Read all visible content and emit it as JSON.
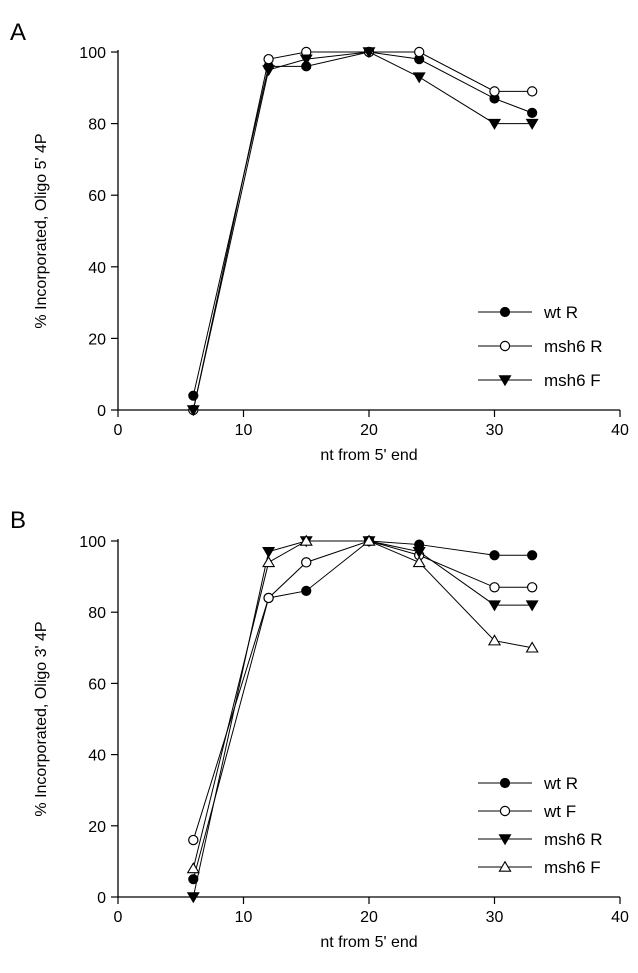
{
  "chart_data": [
    {
      "type": "line",
      "panel_label": "A",
      "xlabel": "nt from 5' end",
      "ylabel": "% Incorporated, Oligo 5' 4P",
      "xlim": [
        0,
        40
      ],
      "ylim": [
        0,
        100
      ],
      "xticks": [
        0,
        10,
        20,
        30,
        40
      ],
      "yticks": [
        0,
        20,
        40,
        60,
        80,
        100
      ],
      "grid": false,
      "legend_position": "bottom-right",
      "x": [
        6,
        12,
        15,
        20,
        24,
        30,
        33
      ],
      "series": [
        {
          "name": "wt R",
          "marker": "circle-filled",
          "values": [
            4,
            96,
            96,
            100,
            98,
            87,
            83
          ]
        },
        {
          "name": "msh6 R",
          "marker": "circle-open",
          "values": [
            0,
            98,
            100,
            100,
            100,
            89,
            89
          ]
        },
        {
          "name": "msh6 F",
          "marker": "triangle-down-filled",
          "values": [
            0,
            95,
            98,
            100,
            93,
            80,
            80
          ]
        }
      ]
    },
    {
      "type": "line",
      "panel_label": "B",
      "xlabel": "nt from 5' end",
      "ylabel": "% Incorporated, Oligo 3' 4P",
      "xlim": [
        0,
        40
      ],
      "ylim": [
        0,
        100
      ],
      "xticks": [
        0,
        10,
        20,
        30,
        40
      ],
      "yticks": [
        0,
        20,
        40,
        60,
        80,
        100
      ],
      "grid": false,
      "legend_position": "bottom-right",
      "x": [
        6,
        12,
        15,
        20,
        24,
        30,
        33
      ],
      "series": [
        {
          "name": "wt R",
          "marker": "circle-filled",
          "values": [
            5,
            84,
            86,
            100,
            99,
            96,
            96
          ]
        },
        {
          "name": "wt F",
          "marker": "circle-open",
          "values": [
            16,
            84,
            94,
            100,
            96,
            87,
            87
          ]
        },
        {
          "name": "msh6 R",
          "marker": "triangle-down-filled",
          "values": [
            0,
            97,
            100,
            100,
            97,
            82,
            82
          ]
        },
        {
          "name": "msh6 F",
          "marker": "triangle-up-open",
          "values": [
            8,
            94,
            100,
            100,
            94,
            72,
            70
          ]
        }
      ]
    }
  ]
}
